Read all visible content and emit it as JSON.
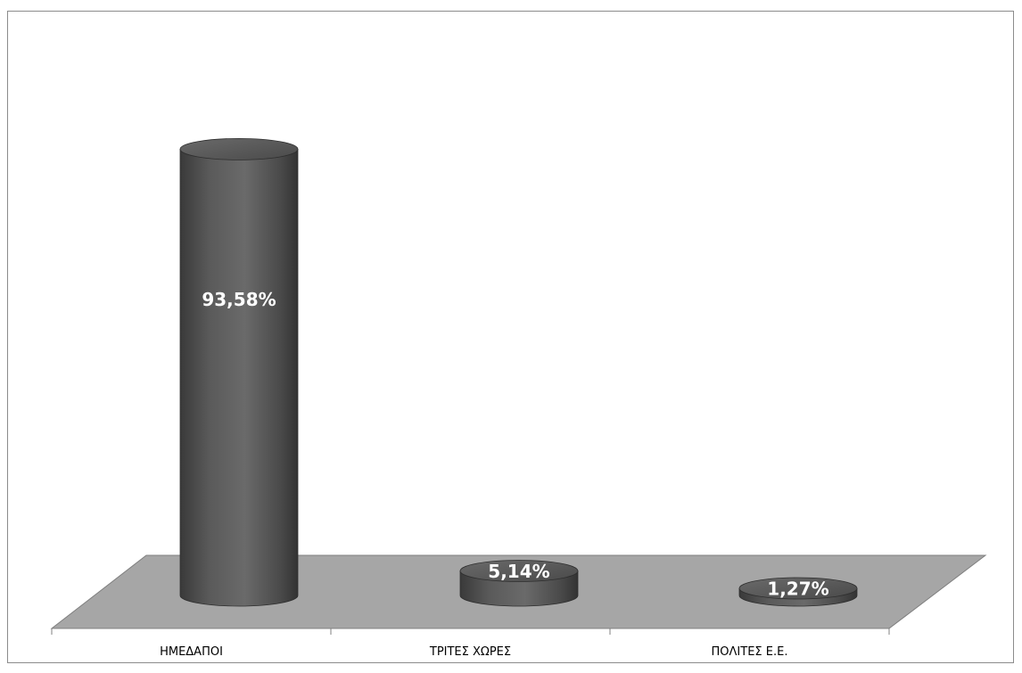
{
  "chart_data": {
    "type": "bar",
    "style": "3d-cylinder",
    "categories": [
      "ΗΜΕΔΑΠΟΙ",
      "ΤΡΙΤΕΣ ΧΩΡΕΣ",
      "ΠΟΛΙΤΕΣ Ε.Ε."
    ],
    "values": [
      93.58,
      5.14,
      1.27
    ],
    "value_labels": [
      "93,58%",
      "5,14%",
      "1,27%"
    ],
    "unit": "%",
    "title": "",
    "xlabel": "",
    "ylabel": "",
    "ylim": [
      0,
      100
    ],
    "grid": false,
    "legend": "none",
    "colors": {
      "bar": "#555555",
      "bar_top": "#5e5e5e",
      "floor": "#a6a6a6",
      "floor_edge": "#7f7f7f",
      "label": "#ffffff",
      "frame": "#8c8c8c"
    }
  }
}
